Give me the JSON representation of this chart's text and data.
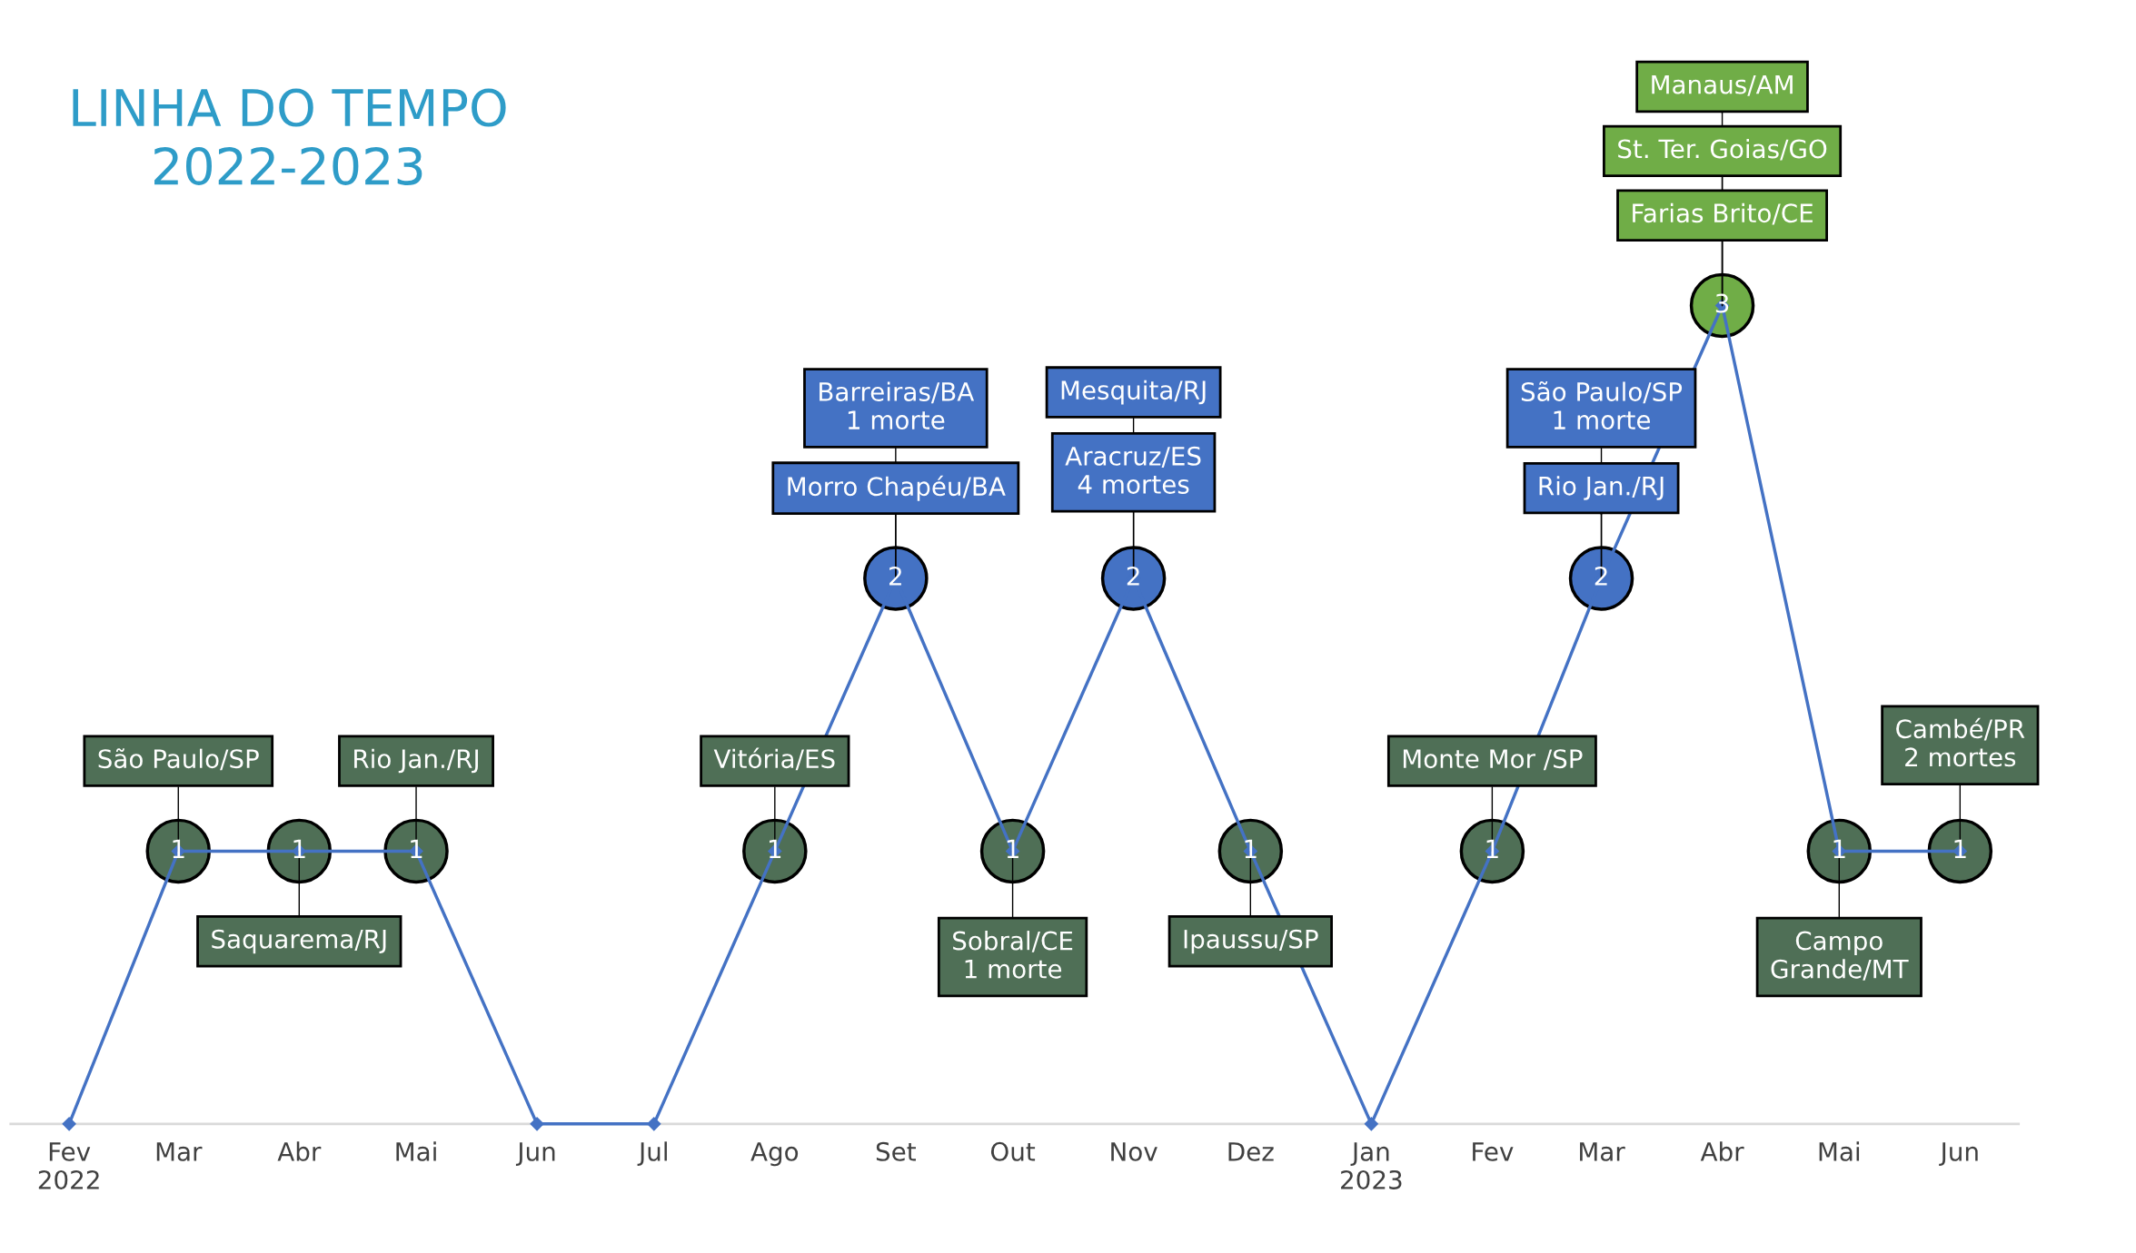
{
  "chart_data": {
    "type": "line",
    "title": "LINHA DO TEMPO\n2022-2023",
    "x": [
      "2022-02",
      "2022-03",
      "2022-04",
      "2022-05",
      "2022-06",
      "2022-07",
      "2022-08",
      "2022-09",
      "2022-10",
      "2022-11",
      "2022-12",
      "2023-01",
      "2023-02",
      "2023-03",
      "2023-04",
      "2023-05",
      "2023-06"
    ],
    "values": [
      0,
      1,
      1,
      1,
      0,
      0,
      1,
      2,
      1,
      2,
      1,
      0,
      1,
      2,
      3,
      1,
      1
    ],
    "value_labels": [
      null,
      "1",
      "1",
      "1",
      null,
      null,
      "1",
      "2",
      "1",
      "2",
      "1",
      null,
      "1",
      "2",
      "3",
      "1",
      "1"
    ],
    "color": "#4472c4",
    "colors": [
      "#4472c4",
      "#4f6f56",
      "#4f6f56",
      "#4f6f56",
      "#4472c4",
      "#4472c4",
      "#4f6f56",
      "#4472c4",
      "#4f6f56",
      "#4472c4",
      "#4f6f56",
      "#4472c4",
      "#4f6f56",
      "#4472c4",
      "#70ad47",
      "#4f6f56",
      "#4f6f56"
    ],
    "marker": "diamond",
    "xlim": [
      "2022-01-17",
      "2023-06-16"
    ],
    "xticks": [
      {
        "value": "2022-02",
        "label": "Fev\n2022"
      },
      {
        "value": "2022-03",
        "label": "Mar"
      },
      {
        "value": "2022-04",
        "label": "Abr"
      },
      {
        "value": "2022-05",
        "label": "Mai"
      },
      {
        "value": "2022-06",
        "label": "Jun"
      },
      {
        "value": "2022-07",
        "label": "Jul"
      },
      {
        "value": "2022-08",
        "label": "Ago"
      },
      {
        "value": "2022-09",
        "label": "Set"
      },
      {
        "value": "2022-10",
        "label": "Out"
      },
      {
        "value": "2022-11",
        "label": "Nov"
      },
      {
        "value": "2022-12",
        "label": "Dez"
      },
      {
        "value": "2023-01",
        "label": "Jan\n2023"
      },
      {
        "value": "2023-02",
        "label": "Fev"
      },
      {
        "value": "2023-03",
        "label": "Mar"
      },
      {
        "value": "2023-04",
        "label": "Abr"
      },
      {
        "value": "2023-05",
        "label": "Mai"
      },
      {
        "value": "2023-06",
        "label": "Jun"
      }
    ],
    "tick_labels": "x",
    "grid": false,
    "legend": false,
    "annotations": [
      {
        "text": "São Paulo/SP",
        "x": "2022-03",
        "y": 1
      },
      {
        "text": "Saquarema/RJ",
        "x": "2022-04",
        "y": 1
      },
      {
        "text": "Rio Jan./RJ",
        "x": "2022-05",
        "y": 1
      },
      {
        "text": "Vitória/ES",
        "x": "2022-08",
        "y": 1
      },
      {
        "text": "Morro Chapéu/BA",
        "x": "2022-09",
        "y": 2
      },
      {
        "text": "Barreiras/BA\n1 morte",
        "x": "2022-09",
        "y": 2
      },
      {
        "text": "Sobral/CE\n1 morte",
        "x": "2022-10",
        "y": 1
      },
      {
        "text": "Aracruz/ES\n4 mortes",
        "x": "2022-11",
        "y": 2
      },
      {
        "text": "Mesquita/RJ",
        "x": "2022-11",
        "y": 2
      },
      {
        "text": "Ipaussu/SP",
        "x": "2022-12",
        "y": 1
      },
      {
        "text": "Monte Mor /SP",
        "x": "2023-02",
        "y": 1
      },
      {
        "text": "Rio Jan./RJ",
        "x": "2023-03",
        "y": 2
      },
      {
        "text": "São Paulo/SP\n1 morte",
        "x": "2023-03",
        "y": 2
      },
      {
        "text": "Farias Brito/CE",
        "x": "2023-04",
        "y": 3
      },
      {
        "text": "St. Ter. Goias/GO",
        "x": "2023-04",
        "y": 3
      },
      {
        "text": "Manaus/AM",
        "x": "2023-04",
        "y": 3
      },
      {
        "text": "Campo\nGrande/MT",
        "x": "2023-05",
        "y": 1
      },
      {
        "text": "Cambé/PR\n2 mortes",
        "x": "2023-06",
        "y": 1
      }
    ]
  }
}
